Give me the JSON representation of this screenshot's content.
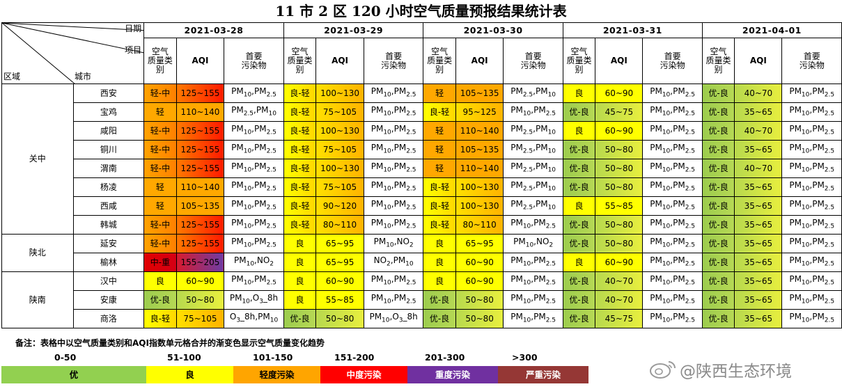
{
  "title": "11 市 2 区 120 小时空气质量预报结果统计表",
  "header": {
    "date_label": "日期",
    "item_label": "项目",
    "region_label": "区域",
    "city_label": "城市",
    "cat_label_lines": [
      "空气",
      "质量类",
      "别"
    ],
    "aqi_label": "AQI",
    "pol_label_lines": [
      "首要",
      "污染物"
    ],
    "dates": [
      "2021-03-28",
      "2021-03-29",
      "2021-03-30",
      "2021-03-31",
      "2021-04-01"
    ]
  },
  "colors": {
    "优": "#92d050",
    "优-良": "#c0dc56",
    "良": "#ffff00",
    "良-轻": "#ffd21a",
    "轻": "#ffad00",
    "轻-中": "#ff8400",
    "中-重": "#e2161a",
    "aqi_sample_1": "#ff4c09",
    "aqi_sample_2": "#7e4fa2",
    "中度": "#ff0000",
    "重度": "#7030a0",
    "严重": "#953735"
  },
  "regions": [
    {
      "name": "关中",
      "rows": 8
    },
    {
      "name": "陕北",
      "rows": 2
    },
    {
      "name": "陕南",
      "rows": 3
    }
  ],
  "rows": [
    {
      "city": "西安",
      "days": [
        {
          "cat": "轻-中",
          "aqi": "125~155",
          "pol": [
            "PM10",
            "PM2.5"
          ]
        },
        {
          "cat": "良-轻",
          "aqi": "100~130",
          "pol": [
            "PM10",
            "PM2.5"
          ]
        },
        {
          "cat": "轻",
          "aqi": "105~135",
          "pol": [
            "PM2.5",
            "PM10"
          ]
        },
        {
          "cat": "良",
          "aqi": "60~90",
          "pol": [
            "PM10",
            "PM2.5"
          ]
        },
        {
          "cat": "优-良",
          "aqi": "40~70",
          "pol": [
            "PM10",
            "PM2.5"
          ]
        }
      ]
    },
    {
      "city": "宝鸡",
      "days": [
        {
          "cat": "轻",
          "aqi": "110~140",
          "pol": [
            "PM2.5",
            "PM10"
          ]
        },
        {
          "cat": "良-轻",
          "aqi": "75~105",
          "pol": [
            "PM10",
            "PM2.5"
          ]
        },
        {
          "cat": "良-轻",
          "aqi": "95~125",
          "pol": [
            "PM10",
            "PM2.5"
          ]
        },
        {
          "cat": "优-良",
          "aqi": "45~75",
          "pol": [
            "PM10",
            "PM2.5"
          ]
        },
        {
          "cat": "优-良",
          "aqi": "35~65",
          "pol": [
            "PM10",
            "PM2.5"
          ]
        }
      ]
    },
    {
      "city": "咸阳",
      "days": [
        {
          "cat": "轻-中",
          "aqi": "125~155",
          "pol": [
            "PM10",
            "PM2.5"
          ]
        },
        {
          "cat": "良-轻",
          "aqi": "100~130",
          "pol": [
            "PM10",
            "PM2.5"
          ]
        },
        {
          "cat": "轻",
          "aqi": "110~140",
          "pol": [
            "PM2.5",
            "PM10"
          ]
        },
        {
          "cat": "良",
          "aqi": "60~90",
          "pol": [
            "PM10",
            "PM2.5"
          ]
        },
        {
          "cat": "优-良",
          "aqi": "40~70",
          "pol": [
            "PM10",
            "PM2.5"
          ]
        }
      ]
    },
    {
      "city": "铜川",
      "days": [
        {
          "cat": "轻-中",
          "aqi": "125~155",
          "pol": [
            "PM10",
            "PM2.5"
          ]
        },
        {
          "cat": "良-轻",
          "aqi": "75~105",
          "pol": [
            "PM10",
            "PM2.5"
          ]
        },
        {
          "cat": "轻",
          "aqi": "105~135",
          "pol": [
            "PM2.5",
            "PM10"
          ]
        },
        {
          "cat": "优-良",
          "aqi": "50~80",
          "pol": [
            "PM10",
            "PM2.5"
          ]
        },
        {
          "cat": "优-良",
          "aqi": "35~65",
          "pol": [
            "PM10",
            "PM2.5"
          ]
        }
      ]
    },
    {
      "city": "渭南",
      "days": [
        {
          "cat": "轻-中",
          "aqi": "125~155",
          "pol": [
            "PM10",
            "PM2.5"
          ]
        },
        {
          "cat": "良-轻",
          "aqi": "100~130",
          "pol": [
            "PM10",
            "PM2.5"
          ]
        },
        {
          "cat": "轻",
          "aqi": "110~140",
          "pol": [
            "PM2.5",
            "PM10"
          ]
        },
        {
          "cat": "优-良",
          "aqi": "50~80",
          "pol": [
            "PM10",
            "PM2.5"
          ]
        },
        {
          "cat": "优-良",
          "aqi": "40~70",
          "pol": [
            "PM10",
            "PM2.5"
          ]
        }
      ]
    },
    {
      "city": "杨凌",
      "days": [
        {
          "cat": "轻",
          "aqi": "110~140",
          "pol": [
            "PM10",
            "PM2.5"
          ]
        },
        {
          "cat": "良-轻",
          "aqi": "75~105",
          "pol": [
            "PM10",
            "PM2.5"
          ]
        },
        {
          "cat": "良-轻",
          "aqi": "100~130",
          "pol": [
            "PM2.5",
            "PM10"
          ]
        },
        {
          "cat": "优-良",
          "aqi": "50~80",
          "pol": [
            "PM10",
            "PM2.5"
          ]
        },
        {
          "cat": "优-良",
          "aqi": "35~65",
          "pol": [
            "PM10",
            "PM2.5"
          ]
        }
      ]
    },
    {
      "city": "西咸",
      "days": [
        {
          "cat": "轻",
          "aqi": "105~135",
          "pol": [
            "PM10",
            "PM2.5"
          ]
        },
        {
          "cat": "良-轻",
          "aqi": "90~120",
          "pol": [
            "PM10",
            "PM2.5"
          ]
        },
        {
          "cat": "良-轻",
          "aqi": "100~130",
          "pol": [
            "PM2.5",
            "PM10"
          ]
        },
        {
          "cat": "良",
          "aqi": "55~85",
          "pol": [
            "PM10",
            "PM2.5"
          ]
        },
        {
          "cat": "优-良",
          "aqi": "35~65",
          "pol": [
            "PM10",
            "PM2.5"
          ]
        }
      ]
    },
    {
      "city": "韩城",
      "days": [
        {
          "cat": "轻-中",
          "aqi": "125~155",
          "pol": [
            "PM10",
            "PM2.5"
          ]
        },
        {
          "cat": "良-轻",
          "aqi": "80~110",
          "pol": [
            "PM10",
            "PM2.5"
          ]
        },
        {
          "cat": "良-轻",
          "aqi": "80~110",
          "pol": [
            "PM10",
            "PM2.5"
          ]
        },
        {
          "cat": "优-良",
          "aqi": "50~80",
          "pol": [
            "PM10",
            "PM2.5"
          ]
        },
        {
          "cat": "优-良",
          "aqi": "35~65",
          "pol": [
            "PM10",
            "PM2.5"
          ]
        }
      ]
    },
    {
      "city": "延安",
      "days": [
        {
          "cat": "轻-中",
          "aqi": "125~155",
          "pol": [
            "PM10",
            "PM2.5"
          ]
        },
        {
          "cat": "良",
          "aqi": "65~95",
          "pol": [
            "PM10",
            "NO2"
          ]
        },
        {
          "cat": "良",
          "aqi": "65~95",
          "pol": [
            "PM10",
            "NO2"
          ]
        },
        {
          "cat": "优-良",
          "aqi": "50~80",
          "pol": [
            "PM10",
            "PM2.5"
          ]
        },
        {
          "cat": "优-良",
          "aqi": "35~65",
          "pol": [
            "PM10",
            "PM2.5"
          ]
        }
      ]
    },
    {
      "city": "榆林",
      "days": [
        {
          "cat": "中-重",
          "aqi": "155~205",
          "pol": [
            "PM10",
            "NO2"
          ]
        },
        {
          "cat": "良",
          "aqi": "65~95",
          "pol": [
            "NO2",
            "PM10"
          ]
        },
        {
          "cat": "良",
          "aqi": "60~90",
          "pol": [
            "PM10",
            "PM2.5"
          ]
        },
        {
          "cat": "良",
          "aqi": "60~90",
          "pol": [
            "PM10",
            "PM2.5"
          ]
        },
        {
          "cat": "优-良",
          "aqi": "35~65",
          "pol": [
            "PM10",
            "PM2.5"
          ]
        }
      ]
    },
    {
      "city": "汉中",
      "days": [
        {
          "cat": "良",
          "aqi": "60~90",
          "pol": [
            "PM10",
            "PM2.5"
          ]
        },
        {
          "cat": "良",
          "aqi": "60~90",
          "pol": [
            "PM10",
            "PM2.5"
          ]
        },
        {
          "cat": "良",
          "aqi": "60~90",
          "pol": [
            "PM10",
            "PM2.5"
          ]
        },
        {
          "cat": "优-良",
          "aqi": "40~70",
          "pol": [
            "PM10",
            "PM2.5"
          ]
        },
        {
          "cat": "优-良",
          "aqi": "35~65",
          "pol": [
            "PM10",
            "PM2.5"
          ]
        }
      ]
    },
    {
      "city": "安康",
      "days": [
        {
          "cat": "优-良",
          "aqi": "50~80",
          "pol": [
            "PM10",
            "O3_8h"
          ]
        },
        {
          "cat": "良",
          "aqi": "55~85",
          "pol": [
            "PM10",
            "PM2.5"
          ]
        },
        {
          "cat": "优-良",
          "aqi": "50~80",
          "pol": [
            "PM10",
            "PM2.5"
          ]
        },
        {
          "cat": "优-良",
          "aqi": "40~70",
          "pol": [
            "PM10",
            "PM2.5"
          ]
        },
        {
          "cat": "优-良",
          "aqi": "35~65",
          "pol": [
            "PM10",
            "PM2.5"
          ]
        }
      ]
    },
    {
      "city": "商洛",
      "days": [
        {
          "cat": "良-轻",
          "aqi": "75~105",
          "pol": [
            "O3_8h",
            "PM10"
          ]
        },
        {
          "cat": "优-良",
          "aqi": "50~80",
          "pol": [
            "PM10",
            "O3_8h"
          ]
        },
        {
          "cat": "优-良",
          "aqi": "50~80",
          "pol": [
            "PM10",
            "PM2.5"
          ]
        },
        {
          "cat": "优-良",
          "aqi": "45~75",
          "pol": [
            "PM10",
            "PM2.5"
          ]
        },
        {
          "cat": "优-良",
          "aqi": "35~65",
          "pol": [
            "PM10",
            "PM2.5"
          ]
        }
      ]
    }
  ],
  "note": "备注：表格中以空气质量类别和AQI指数单元格合并的渐变色显示空气质量变化趋势",
  "scale": [
    "0-50",
    "51-100",
    "101-150",
    "151-200",
    "201-300",
    ">300"
  ],
  "legend": [
    {
      "label": "优",
      "color": "#92d050"
    },
    {
      "label": "良",
      "color": "#ffff00"
    },
    {
      "label": "轻度污染",
      "color": "#ffa500"
    },
    {
      "label": "中度污染",
      "color": "#ff0000"
    },
    {
      "label": "重度污染",
      "color": "#7030a0"
    },
    {
      "label": "严重污染",
      "color": "#953735"
    }
  ],
  "watermark": "@陕西生态环境"
}
